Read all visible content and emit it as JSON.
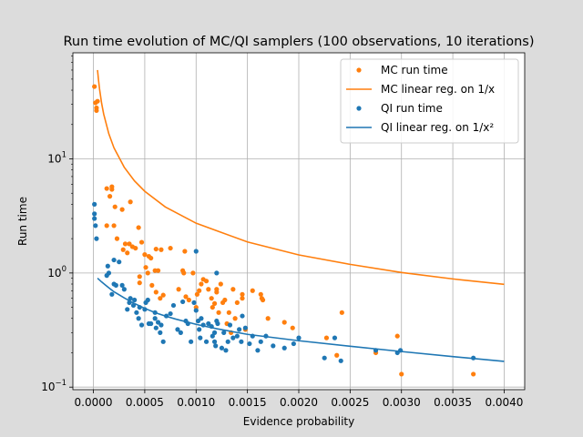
{
  "chart_data": {
    "type": "scatter",
    "title": "Run time evolution of MC/QI samplers (100 observations, 10 iterations)",
    "xlabel": "Evidence probability",
    "ylabel": "Run time",
    "yscale": "log",
    "xlim": [
      -0.0002,
      0.0042
    ],
    "ylim": [
      0.095,
      85
    ],
    "grid": true,
    "legend_position": "top-right",
    "x_ticks": [
      {
        "v": 0.0,
        "label": "0.0000"
      },
      {
        "v": 0.0005,
        "label": "0.0005"
      },
      {
        "v": 0.001,
        "label": "0.0010"
      },
      {
        "v": 0.0015,
        "label": "0.0015"
      },
      {
        "v": 0.002,
        "label": "0.0020"
      },
      {
        "v": 0.0025,
        "label": "0.0025"
      },
      {
        "v": 0.003,
        "label": "0.0030"
      },
      {
        "v": 0.0035,
        "label": "0.0035"
      },
      {
        "v": 0.004,
        "label": "0.0040"
      }
    ],
    "y_ticks": [
      {
        "v": 0.1,
        "base": "10",
        "exp": "−1"
      },
      {
        "v": 1,
        "base": "10",
        "exp": "0"
      },
      {
        "v": 10,
        "base": "10",
        "exp": "1"
      }
    ],
    "series": [
      {
        "name": "MC run time",
        "kind": "scatter",
        "color": "#ff7f0e",
        "points": [
          [
            1e-05,
            43
          ],
          [
            2e-05,
            31
          ],
          [
            3e-05,
            28
          ],
          [
            3e-05,
            26.5
          ],
          [
            4e-05,
            32
          ],
          [
            0.00013,
            5.5
          ],
          [
            0.00013,
            2.6
          ],
          [
            0.00016,
            4.7
          ],
          [
            0.00018,
            5.4
          ],
          [
            0.00018,
            5.7
          ],
          [
            0.0002,
            2.6
          ],
          [
            0.00021,
            3.8
          ],
          [
            0.00023,
            2.0
          ],
          [
            0.00028,
            3.6
          ],
          [
            0.00029,
            1.6
          ],
          [
            0.00031,
            1.8
          ],
          [
            0.00033,
            1.5
          ],
          [
            0.00035,
            1.8
          ],
          [
            0.00036,
            4.2
          ],
          [
            0.00038,
            1.7
          ],
          [
            0.00041,
            1.65
          ],
          [
            0.00044,
            2.5
          ],
          [
            0.00045,
            0.93
          ],
          [
            0.00045,
            0.82
          ],
          [
            0.00047,
            1.86
          ],
          [
            0.0005,
            1.45
          ],
          [
            0.00051,
            1.12
          ],
          [
            0.00053,
            1.0
          ],
          [
            0.00054,
            1.4
          ],
          [
            0.00056,
            1.35
          ],
          [
            0.00057,
            0.78
          ],
          [
            0.0006,
            1.05
          ],
          [
            0.00061,
            1.62
          ],
          [
            0.00061,
            0.68
          ],
          [
            0.00063,
            1.05
          ],
          [
            0.00065,
            0.6
          ],
          [
            0.00066,
            1.6
          ],
          [
            0.00068,
            0.64
          ],
          [
            0.00075,
            1.65
          ],
          [
            0.00083,
            0.72
          ],
          [
            0.00087,
            1.05
          ],
          [
            0.00088,
            1.0
          ],
          [
            0.00089,
            1.55
          ],
          [
            0.0009,
            0.62
          ],
          [
            0.00093,
            0.58
          ],
          [
            0.00097,
            1.0
          ],
          [
            0.001,
            0.5
          ],
          [
            0.00101,
            0.65
          ],
          [
            0.00103,
            0.7
          ],
          [
            0.00105,
            0.8
          ],
          [
            0.00107,
            0.88
          ],
          [
            0.0011,
            0.85
          ],
          [
            0.00112,
            0.72
          ],
          [
            0.00115,
            0.6
          ],
          [
            0.00116,
            0.5
          ],
          [
            0.00118,
            0.54
          ],
          [
            0.0012,
            0.68
          ],
          [
            0.0012,
            0.72
          ],
          [
            0.00122,
            0.45
          ],
          [
            0.00124,
            0.8
          ],
          [
            0.00126,
            0.55
          ],
          [
            0.00128,
            0.58
          ],
          [
            0.0013,
            0.36
          ],
          [
            0.00132,
            0.45
          ],
          [
            0.00134,
            0.3
          ],
          [
            0.00136,
            0.72
          ],
          [
            0.00138,
            0.4
          ],
          [
            0.0014,
            0.55
          ],
          [
            0.00145,
            0.6
          ],
          [
            0.00145,
            0.65
          ],
          [
            0.00148,
            0.32
          ],
          [
            0.00155,
            0.7
          ],
          [
            0.00163,
            0.65
          ],
          [
            0.00164,
            0.6
          ],
          [
            0.00165,
            0.58
          ],
          [
            0.0017,
            0.4
          ],
          [
            0.00186,
            0.37
          ],
          [
            0.00194,
            0.33
          ],
          [
            0.00227,
            0.27
          ],
          [
            0.00237,
            0.19
          ],
          [
            0.00242,
            0.45
          ],
          [
            0.00275,
            0.2
          ],
          [
            0.00296,
            0.28
          ],
          [
            0.003,
            0.13
          ],
          [
            0.0037,
            0.13
          ]
        ]
      },
      {
        "name": "MC linear reg. on 1/x",
        "kind": "line",
        "color": "#ff7f0e",
        "points": [
          [
            4e-05,
            60
          ],
          [
            5e-05,
            48.8
          ],
          [
            6e-05,
            40.8
          ],
          [
            8e-05,
            30.7
          ],
          [
            0.0001,
            24.7
          ],
          [
            0.00015,
            16.6
          ],
          [
            0.0002,
            12.5
          ],
          [
            0.0003,
            8.45
          ],
          [
            0.0004,
            6.41
          ],
          [
            0.0005,
            5.2
          ],
          [
            0.0007,
            3.79
          ],
          [
            0.001,
            2.73
          ],
          [
            0.0015,
            1.87
          ],
          [
            0.002,
            1.44
          ],
          [
            0.0025,
            1.19
          ],
          [
            0.003,
            1.01
          ],
          [
            0.0035,
            0.887
          ],
          [
            0.004,
            0.795
          ]
        ]
      },
      {
        "name": "QI run time",
        "kind": "scatter",
        "color": "#1f77b4",
        "points": [
          [
            1e-05,
            4.0
          ],
          [
            1e-05,
            3.3
          ],
          [
            1e-05,
            3.0
          ],
          [
            2e-05,
            2.6
          ],
          [
            3e-05,
            2.0
          ],
          [
            0.00013,
            0.95
          ],
          [
            0.00014,
            1.15
          ],
          [
            0.00015,
            1.0
          ],
          [
            0.00018,
            0.65
          ],
          [
            0.0002,
            0.8
          ],
          [
            0.0002,
            1.3
          ],
          [
            0.00022,
            0.78
          ],
          [
            0.00025,
            1.25
          ],
          [
            0.00028,
            0.78
          ],
          [
            0.0003,
            0.72
          ],
          [
            0.00033,
            0.48
          ],
          [
            0.00035,
            0.55
          ],
          [
            0.00036,
            0.6
          ],
          [
            0.00039,
            0.52
          ],
          [
            0.0004,
            0.58
          ],
          [
            0.00042,
            0.45
          ],
          [
            0.00044,
            0.4
          ],
          [
            0.00045,
            0.5
          ],
          [
            0.00047,
            0.35
          ],
          [
            0.0005,
            0.48
          ],
          [
            0.00051,
            0.55
          ],
          [
            0.00053,
            0.58
          ],
          [
            0.00054,
            0.36
          ],
          [
            0.00056,
            0.36
          ],
          [
            0.0006,
            0.4
          ],
          [
            0.0006,
            0.45
          ],
          [
            0.00061,
            0.33
          ],
          [
            0.00063,
            0.37
          ],
          [
            0.00065,
            0.3
          ],
          [
            0.00066,
            0.35
          ],
          [
            0.00068,
            0.25
          ],
          [
            0.00071,
            0.42
          ],
          [
            0.00075,
            0.44
          ],
          [
            0.00078,
            0.52
          ],
          [
            0.00082,
            0.32
          ],
          [
            0.00085,
            0.3
          ],
          [
            0.00087,
            0.56
          ],
          [
            0.0009,
            0.38
          ],
          [
            0.00092,
            0.36
          ],
          [
            0.00095,
            0.25
          ],
          [
            0.00098,
            0.55
          ],
          [
            0.001,
            0.47
          ],
          [
            0.00102,
            0.38
          ],
          [
            0.00103,
            0.32
          ],
          [
            0.00104,
            0.27
          ],
          [
            0.00105,
            0.4
          ],
          [
            0.00107,
            0.35
          ],
          [
            0.0011,
            0.25
          ],
          [
            0.00112,
            0.36
          ],
          [
            0.00115,
            0.34
          ],
          [
            0.00116,
            0.28
          ],
          [
            0.00118,
            0.25
          ],
          [
            0.00118,
            0.3
          ],
          [
            0.00119,
            0.23
          ],
          [
            0.0012,
            0.38
          ],
          [
            0.00121,
            0.36
          ],
          [
            0.00125,
            0.22
          ],
          [
            0.00127,
            0.3
          ],
          [
            0.00129,
            0.21
          ],
          [
            0.00131,
            0.25
          ],
          [
            0.00133,
            0.35
          ],
          [
            0.00136,
            0.27
          ],
          [
            0.0014,
            0.28
          ],
          [
            0.00142,
            0.32
          ],
          [
            0.00144,
            0.25
          ],
          [
            0.00145,
            0.42
          ],
          [
            0.00148,
            0.33
          ],
          [
            0.00152,
            0.24
          ],
          [
            0.00155,
            0.28
          ],
          [
            0.0016,
            0.21
          ],
          [
            0.00163,
            0.25
          ],
          [
            0.00168,
            0.28
          ],
          [
            0.00175,
            0.23
          ],
          [
            0.00186,
            0.22
          ],
          [
            0.00195,
            0.24
          ],
          [
            0.002,
            0.27
          ],
          [
            0.00225,
            0.18
          ],
          [
            0.00235,
            0.27
          ],
          [
            0.00241,
            0.17
          ],
          [
            0.00275,
            0.21
          ],
          [
            0.00296,
            0.2
          ],
          [
            0.00299,
            0.21
          ],
          [
            0.0037,
            0.18
          ],
          [
            0.001,
            1.55
          ],
          [
            0.0012,
            1.0
          ]
        ]
      },
      {
        "name": "QI linear reg. on 1/x²",
        "kind": "line",
        "color": "#1f77b4",
        "points": [
          [
            4e-05,
            0.9
          ],
          [
            8e-05,
            0.835
          ],
          [
            0.00012,
            0.78
          ],
          [
            0.00016,
            0.73
          ],
          [
            0.0002,
            0.685
          ],
          [
            0.0003,
            0.605
          ],
          [
            0.0004,
            0.54
          ],
          [
            0.0005,
            0.49
          ],
          [
            0.0006,
            0.45
          ],
          [
            0.0007,
            0.42
          ],
          [
            0.0008,
            0.395
          ],
          [
            0.001,
            0.355
          ],
          [
            0.0012,
            0.325
          ],
          [
            0.0015,
            0.29
          ],
          [
            0.002,
            0.255
          ],
          [
            0.0025,
            0.228
          ],
          [
            0.003,
            0.205
          ],
          [
            0.0035,
            0.185
          ],
          [
            0.004,
            0.168
          ]
        ]
      }
    ]
  }
}
